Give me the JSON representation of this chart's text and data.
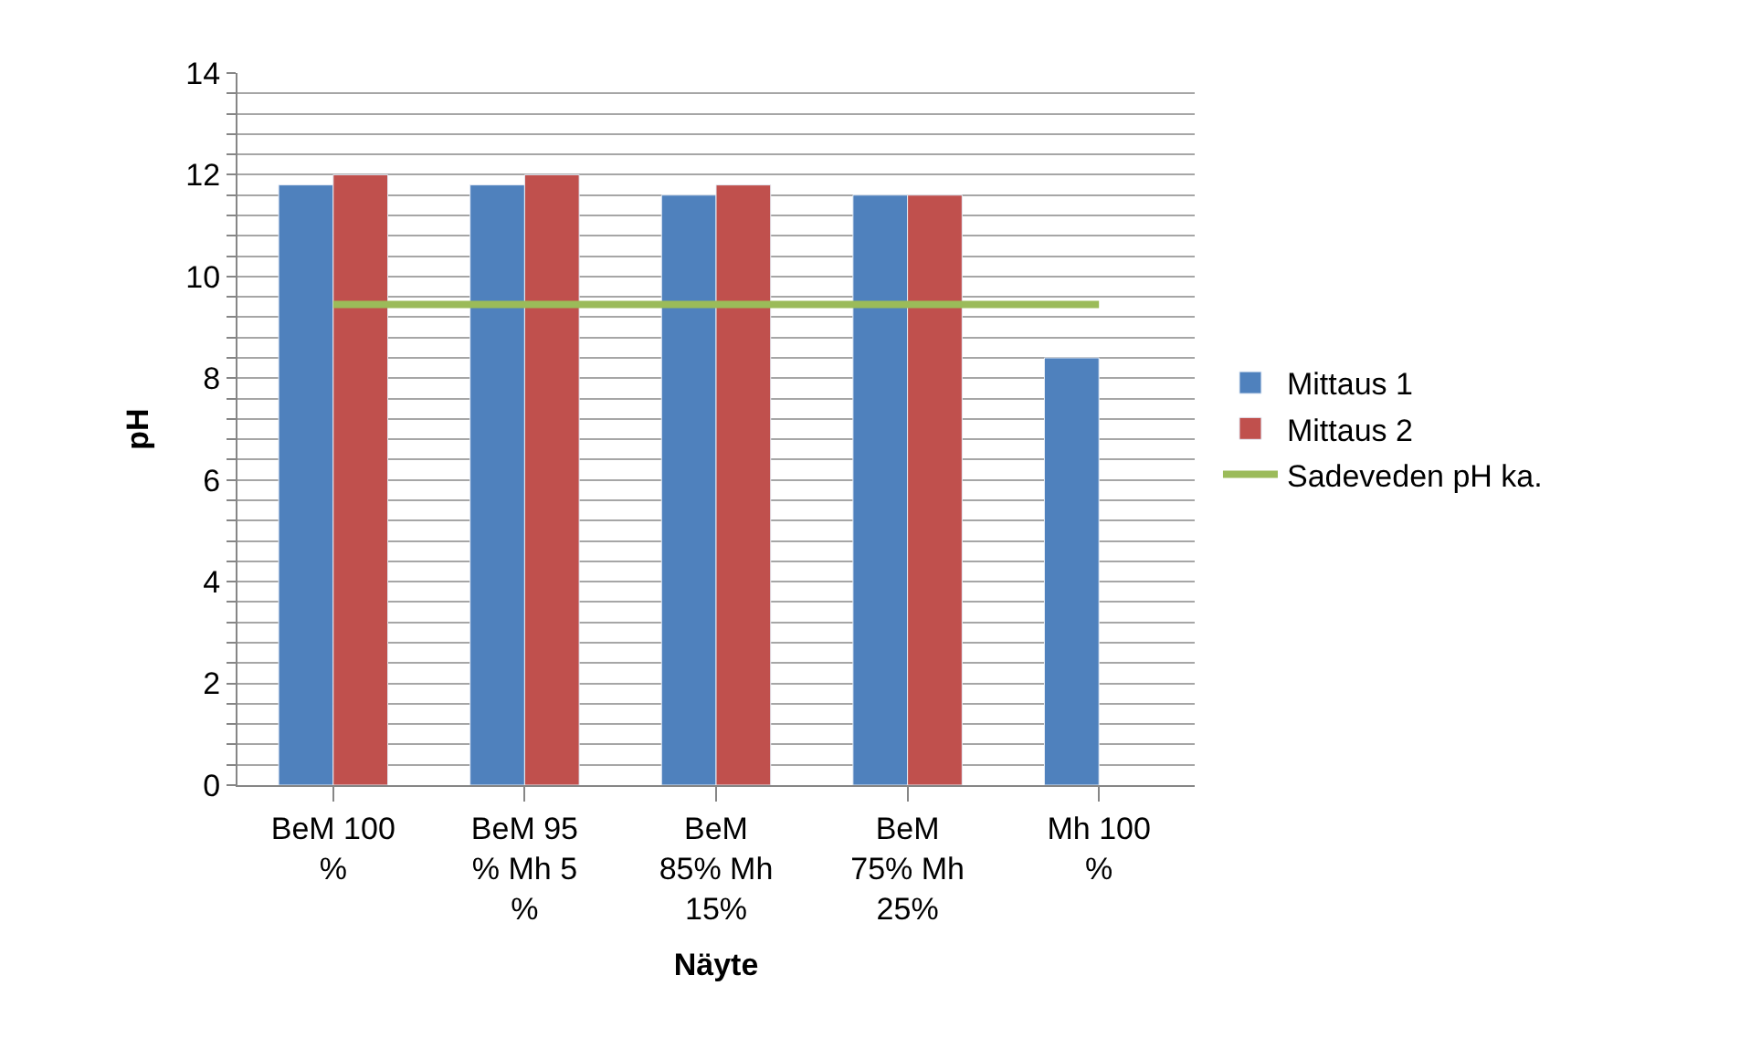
{
  "chart_data": {
    "type": "bar",
    "xlabel": "Näyte",
    "ylabel": "pH",
    "categories": [
      "BeM 100\n%",
      "BeM 95\n% Mh 5\n%",
      "BeM\n85% Mh\n15%",
      "BeM\n75% Mh\n25%",
      "Mh 100\n%"
    ],
    "series": [
      {
        "name": "Mittaus 1",
        "color": "#4f81bd",
        "values": [
          11.8,
          11.8,
          11.6,
          11.6,
          8.4
        ]
      },
      {
        "name": "Mittaus 2",
        "color": "#c0504d",
        "values": [
          12,
          12,
          11.8,
          11.6,
          null
        ]
      },
      {
        "name": "Sadeveden pH ka.",
        "type": "line",
        "color": "#9bbb59",
        "values": [
          9.45,
          9.45,
          9.45,
          9.45,
          9.45
        ]
      }
    ],
    "ylim": [
      0,
      14
    ],
    "yticks": [
      0,
      {
        "value": 0.4,
        "label": null
      },
      {
        "value": 0.8,
        "label": null
      },
      {
        "value": 1.2,
        "label": null
      },
      {
        "value": 1.6,
        "label": null
      },
      2,
      {
        "value": 2.4,
        "label": null
      },
      {
        "value": 2.8,
        "label": null
      },
      {
        "value": 3.2,
        "label": null
      },
      {
        "value": 3.6,
        "label": null
      },
      4,
      {
        "value": 4.4,
        "label": null
      },
      {
        "value": 4.8,
        "label": null
      },
      {
        "value": 5.2,
        "label": null
      },
      {
        "value": 5.6,
        "label": null
      },
      6,
      {
        "value": 6.4,
        "label": null
      },
      {
        "value": 6.8,
        "label": null
      },
      {
        "value": 7.2,
        "label": null
      },
      {
        "value": 7.6,
        "label": null
      },
      8,
      {
        "value": 8.4,
        "label": null
      },
      {
        "value": 8.8,
        "label": null
      },
      {
        "value": 9.2,
        "label": null
      },
      {
        "value": 9.6,
        "label": null
      },
      10,
      {
        "value": 10.4,
        "label": null
      },
      {
        "value": 10.8,
        "label": null
      },
      {
        "value": 11.2,
        "label": null
      },
      {
        "value": 11.6,
        "label": null
      },
      12,
      {
        "value": 12.4,
        "label": null
      },
      {
        "value": 12.8,
        "label": null
      },
      {
        "value": 13.2,
        "label": null
      },
      {
        "value": 13.6,
        "label": null
      },
      14
    ],
    "grid": "y",
    "legend": "right"
  }
}
